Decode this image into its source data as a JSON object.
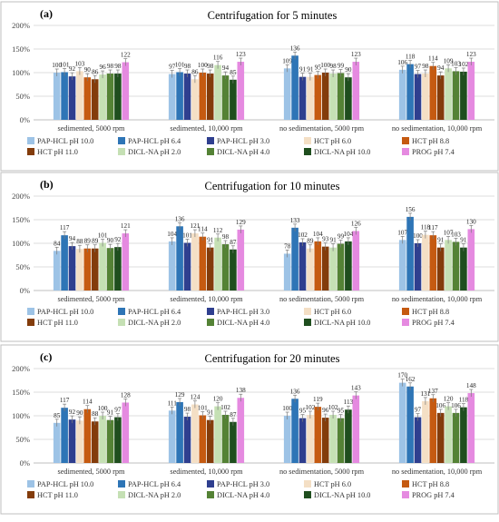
{
  "colors": [
    "#9dc3e6",
    "#2e75b6",
    "#2f3f8f",
    "#f4dfc5",
    "#c55a11",
    "#833c0b",
    "#c5e0b4",
    "#548235",
    "#1f4e1e",
    "#e58ae0"
  ],
  "chart_data": [
    {
      "type": "bar",
      "panel_label": "(a)",
      "title": "Centrifugation for 5 minutes",
      "ylabel": "",
      "xlabel": "",
      "ylim": [
        0,
        200
      ],
      "yticks": [
        "0%",
        "50%",
        "100%",
        "150%",
        "200%"
      ],
      "grid": true,
      "legend_position": "bottom",
      "categories": [
        "sedimented, 5000 rpm",
        "sedimented, 10,000 rpm",
        "no sedimentation, 5000 rpm",
        "no sedimentation, 10,000 rpm"
      ],
      "series": [
        {
          "name": "PAP-HCL pH 10.0",
          "values": [
            100,
            97,
            109,
            106
          ]
        },
        {
          "name": "PAP-HCL pH 6.4",
          "values": [
            101,
            101,
            136,
            118
          ]
        },
        {
          "name": "PAP-HCL pH 3.0",
          "values": [
            92,
            98,
            91,
            97
          ]
        },
        {
          "name": "HCT pH 6.0",
          "values": [
            103,
            86,
            91,
            98
          ]
        },
        {
          "name": "HCT pH 8.8",
          "values": [
            90,
            100,
            95,
            114
          ]
        },
        {
          "name": "HCT pH 11.0",
          "values": [
            86,
            98,
            100,
            94
          ]
        },
        {
          "name": "DICL-NA pH 2.0",
          "values": [
            96,
            116,
            98,
            109
          ]
        },
        {
          "name": "DICL-NA pH 4.0",
          "values": [
            98,
            94,
            99,
            103
          ]
        },
        {
          "name": "DICL-NA pH 10.0",
          "values": [
            98,
            85,
            90,
            102
          ]
        },
        {
          "name": "PROG pH 7.4",
          "values": [
            122,
            123,
            123,
            123
          ]
        }
      ]
    },
    {
      "type": "bar",
      "panel_label": "(b)",
      "title": "Centrifugation for 10 minutes",
      "ylabel": "",
      "xlabel": "",
      "ylim": [
        0,
        200
      ],
      "yticks": [
        "0%",
        "50%",
        "100%",
        "150%",
        "200%"
      ],
      "grid": true,
      "legend_position": "bottom",
      "categories": [
        "sedimented, 5000 rpm",
        "sedimented, 10,000 rpm",
        "no sedimentation, 5000 rpm",
        "no sedimentation, 10,000 rpm"
      ],
      "series": [
        {
          "name": "PAP-HCL pH 10.0",
          "values": [
            84,
            104,
            78,
            107
          ]
        },
        {
          "name": "PAP-HCL pH 6.4",
          "values": [
            117,
            136,
            133,
            156
          ]
        },
        {
          "name": "PAP-HCL pH 3.0",
          "values": [
            94,
            101,
            102,
            100
          ]
        },
        {
          "name": "HCT pH 6.0",
          "values": [
            88,
            121,
            89,
            118
          ]
        },
        {
          "name": "HCT pH 8.8",
          "values": [
            89,
            114,
            104,
            117
          ]
        },
        {
          "name": "HCT pH 11.0",
          "values": [
            89,
            91,
            93,
            91
          ]
        },
        {
          "name": "DICL-NA pH 2.0",
          "values": [
            101,
            112,
            91,
            107
          ]
        },
        {
          "name": "DICL-NA pH 4.0",
          "values": [
            90,
            98,
            99,
            103
          ]
        },
        {
          "name": "DICL-NA pH 10.0",
          "values": [
            92,
            87,
            104,
            91
          ]
        },
        {
          "name": "PROG pH 7.4",
          "values": [
            121,
            129,
            126,
            130
          ]
        }
      ]
    },
    {
      "type": "bar",
      "panel_label": "(c)",
      "title": "Centrifugation for 20 minutes",
      "ylabel": "",
      "xlabel": "",
      "ylim": [
        0,
        200
      ],
      "yticks": [
        "0%",
        "50%",
        "100%",
        "150%",
        "200%"
      ],
      "grid": true,
      "legend_position": "bottom",
      "categories": [
        "sedimented, 5000 rpm",
        "sedimented, 10,000 rpm",
        "no sedimentation, 5000 rpm",
        "no sedimentation, 10,000 rpm"
      ],
      "series": [
        {
          "name": "PAP-HCL pH 10.0",
          "values": [
            85,
            111,
            100,
            170
          ]
        },
        {
          "name": "PAP-HCL pH 6.4",
          "values": [
            117,
            129,
            136,
            162
          ]
        },
        {
          "name": "PAP-HCL pH 3.0",
          "values": [
            92,
            98,
            95,
            97
          ]
        },
        {
          "name": "HCT pH 6.0",
          "values": [
            90,
            124,
            102,
            131
          ]
        },
        {
          "name": "HCT pH 8.8",
          "values": [
            114,
            101,
            119,
            137
          ]
        },
        {
          "name": "HCT pH 11.0",
          "values": [
            88,
            91,
            96,
            106
          ]
        },
        {
          "name": "DICL-NA pH 2.0",
          "values": [
            100,
            120,
            102,
            120
          ]
        },
        {
          "name": "DICL-NA pH 4.0",
          "values": [
            91,
            102,
            95,
            106
          ]
        },
        {
          "name": "DICL-NA pH 10.0",
          "values": [
            97,
            87,
            113,
            118
          ]
        },
        {
          "name": "PROG pH 7.4",
          "values": [
            128,
            138,
            143,
            148
          ]
        }
      ]
    }
  ]
}
